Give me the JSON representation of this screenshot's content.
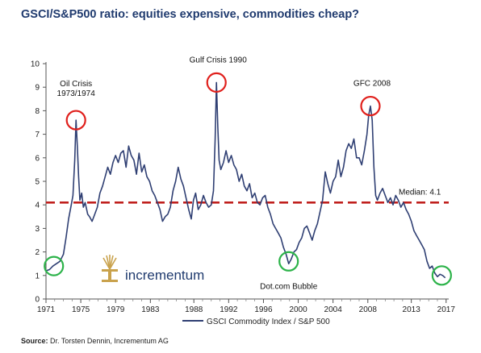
{
  "title": "GSCI/S&P500 ratio: equities expensive, commodities cheap?",
  "source_label": "Source:",
  "source_text": "Dr. Torsten Dennin, Incrementum AG",
  "logo_text": "incrementum",
  "colors": {
    "line": "#2f3f73",
    "median": "#c0201e",
    "red_circle": "#e0201c",
    "green_circle": "#2db34a",
    "title": "#1f3a6e",
    "logo_gold": "#c9a24c"
  },
  "chart_data": {
    "type": "line",
    "title": "GSCI/S&P500 ratio: equities expensive, commodities cheap?",
    "xlabel": "",
    "ylabel": "",
    "xlim": [
      1971,
      2017.3
    ],
    "ylim": [
      0,
      10
    ],
    "y_ticks": [
      0,
      1,
      2,
      3,
      4,
      5,
      6,
      7,
      8,
      9,
      10
    ],
    "x_ticks": [
      1971,
      1975,
      1979,
      1983,
      1988,
      1992,
      1996,
      2000,
      2004,
      2008,
      2013,
      2017
    ],
    "legend": {
      "position": "bottom-center",
      "label": "GSCI Commodity Index / S&P 500"
    },
    "series": [
      {
        "name": "GSCI Commodity Index / S&P 500",
        "points": [
          [
            1971.0,
            1.2
          ],
          [
            1971.4,
            1.25
          ],
          [
            1971.8,
            1.4
          ],
          [
            1972.2,
            1.5
          ],
          [
            1972.6,
            1.6
          ],
          [
            1973.0,
            1.9
          ],
          [
            1973.3,
            2.6
          ],
          [
            1973.6,
            3.4
          ],
          [
            1973.9,
            4.0
          ],
          [
            1974.1,
            4.4
          ],
          [
            1974.3,
            5.9
          ],
          [
            1974.45,
            7.6
          ],
          [
            1974.6,
            6.5
          ],
          [
            1974.75,
            5.2
          ],
          [
            1974.9,
            4.2
          ],
          [
            1975.1,
            4.5
          ],
          [
            1975.3,
            3.9
          ],
          [
            1975.5,
            4.1
          ],
          [
            1975.8,
            3.6
          ],
          [
            1976.0,
            3.5
          ],
          [
            1976.3,
            3.3
          ],
          [
            1976.6,
            3.6
          ],
          [
            1976.9,
            3.9
          ],
          [
            1977.2,
            4.5
          ],
          [
            1977.5,
            4.8
          ],
          [
            1977.8,
            5.2
          ],
          [
            1978.1,
            5.6
          ],
          [
            1978.4,
            5.3
          ],
          [
            1978.7,
            5.8
          ],
          [
            1979.0,
            6.1
          ],
          [
            1979.3,
            5.8
          ],
          [
            1979.6,
            6.2
          ],
          [
            1979.9,
            6.3
          ],
          [
            1980.2,
            5.6
          ],
          [
            1980.5,
            6.5
          ],
          [
            1980.8,
            6.1
          ],
          [
            1981.1,
            5.9
          ],
          [
            1981.4,
            5.3
          ],
          [
            1981.7,
            6.2
          ],
          [
            1982.0,
            5.4
          ],
          [
            1982.3,
            5.7
          ],
          [
            1982.6,
            5.2
          ],
          [
            1982.9,
            5.0
          ],
          [
            1983.2,
            4.6
          ],
          [
            1983.5,
            4.4
          ],
          [
            1983.8,
            4.1
          ],
          [
            1984.1,
            3.8
          ],
          [
            1984.4,
            3.3
          ],
          [
            1984.7,
            3.5
          ],
          [
            1985.0,
            3.6
          ],
          [
            1985.3,
            3.9
          ],
          [
            1985.6,
            4.6
          ],
          [
            1985.9,
            5.0
          ],
          [
            1986.2,
            5.6
          ],
          [
            1986.5,
            5.1
          ],
          [
            1986.8,
            4.8
          ],
          [
            1987.1,
            4.3
          ],
          [
            1987.4,
            3.8
          ],
          [
            1987.7,
            3.4
          ],
          [
            1987.95,
            4.2
          ],
          [
            1988.2,
            4.5
          ],
          [
            1988.5,
            3.8
          ],
          [
            1988.8,
            4.0
          ],
          [
            1989.1,
            4.4
          ],
          [
            1989.4,
            4.1
          ],
          [
            1989.7,
            3.9
          ],
          [
            1990.0,
            4.0
          ],
          [
            1990.25,
            4.6
          ],
          [
            1990.45,
            6.8
          ],
          [
            1990.6,
            9.2
          ],
          [
            1990.75,
            7.3
          ],
          [
            1990.9,
            5.9
          ],
          [
            1991.1,
            5.5
          ],
          [
            1991.4,
            5.8
          ],
          [
            1991.7,
            6.3
          ],
          [
            1992.0,
            5.8
          ],
          [
            1992.3,
            6.1
          ],
          [
            1992.6,
            5.7
          ],
          [
            1992.9,
            5.5
          ],
          [
            1993.2,
            5.0
          ],
          [
            1993.5,
            5.3
          ],
          [
            1993.8,
            4.8
          ],
          [
            1994.1,
            4.6
          ],
          [
            1994.4,
            4.9
          ],
          [
            1994.7,
            4.3
          ],
          [
            1995.0,
            4.5
          ],
          [
            1995.3,
            4.1
          ],
          [
            1995.6,
            4.0
          ],
          [
            1995.9,
            4.3
          ],
          [
            1996.2,
            4.4
          ],
          [
            1996.5,
            3.9
          ],
          [
            1996.8,
            3.6
          ],
          [
            1997.1,
            3.2
          ],
          [
            1997.4,
            3.0
          ],
          [
            1997.7,
            2.8
          ],
          [
            1998.0,
            2.6
          ],
          [
            1998.3,
            2.2
          ],
          [
            1998.6,
            1.9
          ],
          [
            1998.9,
            1.5
          ],
          [
            1999.2,
            1.7
          ],
          [
            1999.5,
            2.0
          ],
          [
            1999.8,
            2.1
          ],
          [
            2000.1,
            2.4
          ],
          [
            2000.4,
            2.6
          ],
          [
            2000.7,
            3.0
          ],
          [
            2001.0,
            3.1
          ],
          [
            2001.3,
            2.8
          ],
          [
            2001.6,
            2.5
          ],
          [
            2001.9,
            2.9
          ],
          [
            2002.2,
            3.2
          ],
          [
            2002.5,
            3.7
          ],
          [
            2002.8,
            4.2
          ],
          [
            2003.1,
            5.4
          ],
          [
            2003.4,
            4.9
          ],
          [
            2003.7,
            4.5
          ],
          [
            2004.0,
            5.0
          ],
          [
            2004.3,
            5.2
          ],
          [
            2004.6,
            5.9
          ],
          [
            2004.9,
            5.2
          ],
          [
            2005.2,
            5.6
          ],
          [
            2005.5,
            6.3
          ],
          [
            2005.8,
            6.6
          ],
          [
            2006.1,
            6.4
          ],
          [
            2006.4,
            6.8
          ],
          [
            2006.7,
            6.0
          ],
          [
            2007.0,
            6.0
          ],
          [
            2007.3,
            5.7
          ],
          [
            2007.6,
            6.3
          ],
          [
            2007.9,
            7.0
          ],
          [
            2008.1,
            7.8
          ],
          [
            2008.3,
            8.2
          ],
          [
            2008.5,
            7.6
          ],
          [
            2008.7,
            5.6
          ],
          [
            2008.9,
            4.4
          ],
          [
            2009.1,
            4.2
          ],
          [
            2009.4,
            4.5
          ],
          [
            2009.7,
            4.7
          ],
          [
            2010.0,
            4.4
          ],
          [
            2010.3,
            4.1
          ],
          [
            2010.6,
            4.3
          ],
          [
            2010.9,
            4.0
          ],
          [
            2011.2,
            4.4
          ],
          [
            2011.5,
            4.2
          ],
          [
            2011.8,
            3.9
          ],
          [
            2012.1,
            4.1
          ],
          [
            2012.4,
            3.8
          ],
          [
            2012.7,
            3.6
          ],
          [
            2013.0,
            3.3
          ],
          [
            2013.3,
            2.9
          ],
          [
            2013.6,
            2.7
          ],
          [
            2013.9,
            2.5
          ],
          [
            2014.2,
            2.3
          ],
          [
            2014.5,
            2.1
          ],
          [
            2014.8,
            1.6
          ],
          [
            2015.1,
            1.3
          ],
          [
            2015.4,
            1.4
          ],
          [
            2015.7,
            1.1
          ],
          [
            2016.0,
            0.95
          ],
          [
            2016.3,
            1.05
          ],
          [
            2016.6,
            1.0
          ],
          [
            2016.9,
            0.9
          ]
        ]
      }
    ],
    "median": {
      "value": 4.1,
      "label": "Median: 4.1"
    },
    "annotations": [
      {
        "id": "oil-crisis",
        "text": [
          "Oil Crisis",
          "1973/1974"
        ],
        "x": 1974.45,
        "y": 7.6,
        "circle": "red"
      },
      {
        "id": "gulf-crisis",
        "text": [
          "Gulf Crisis 1990"
        ],
        "x": 1990.6,
        "y": 9.2,
        "circle": "red"
      },
      {
        "id": "gfc",
        "text": [
          "GFC 2008"
        ],
        "x": 2008.3,
        "y": 8.2,
        "circle": "red"
      },
      {
        "id": "dotcom",
        "text": [
          "Dot.com Bubble"
        ],
        "x": 1998.9,
        "y": 1.6,
        "circle": "green"
      },
      {
        "id": "start",
        "text": [],
        "x": 1971.9,
        "y": 1.4,
        "circle": "green"
      },
      {
        "id": "end",
        "text": [],
        "x": 2016.5,
        "y": 1.0,
        "circle": "green"
      }
    ]
  }
}
